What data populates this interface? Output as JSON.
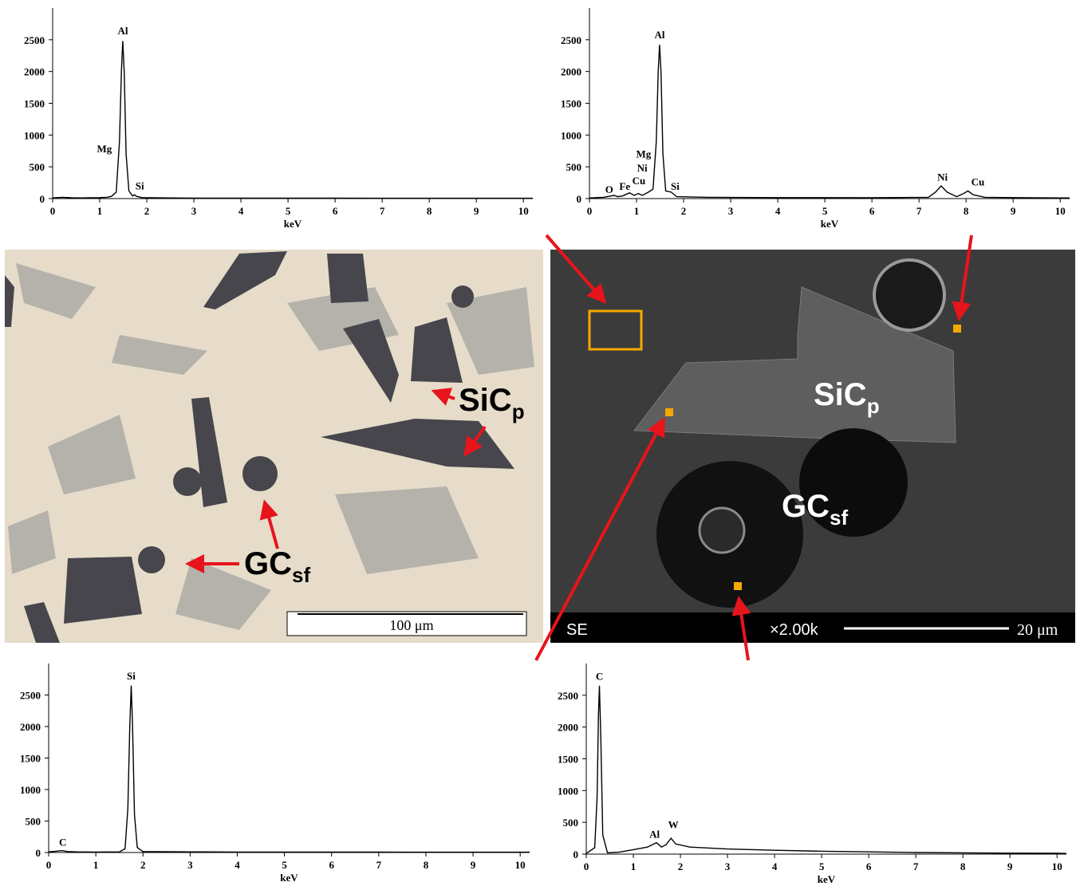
{
  "chart_data": [
    {
      "type": "line",
      "x_label": "keV",
      "xlim": [
        0,
        10.2
      ],
      "xticks": [
        0,
        1,
        2,
        3,
        4,
        5,
        6,
        7,
        8,
        9,
        10
      ],
      "ylim": [
        0,
        3000
      ],
      "yticks": [
        0,
        500,
        1000,
        1500,
        2000,
        2500
      ],
      "x": [
        0,
        0.2,
        0.4,
        0.6,
        0.8,
        1.0,
        1.15,
        1.25,
        1.35,
        1.42,
        1.46,
        1.49,
        1.52,
        1.56,
        1.62,
        1.7,
        1.74,
        1.78,
        1.9,
        2.5,
        3,
        4,
        5,
        6,
        7,
        8,
        9,
        10,
        10.2
      ],
      "series": [
        {
          "color": "#000000",
          "values": [
            10,
            20,
            12,
            10,
            12,
            15,
            20,
            35,
            100,
            900,
            2000,
            2480,
            2000,
            700,
            120,
            40,
            60,
            35,
            15,
            10,
            8,
            8,
            6,
            6,
            5,
            5,
            5,
            5,
            5
          ]
        }
      ],
      "annotations": [
        {
          "text": "Al",
          "x": 1.49,
          "y": 2560
        },
        {
          "text": "Mg",
          "x": 1.1,
          "y": 700
        },
        {
          "text": "Si",
          "x": 1.85,
          "y": 120
        }
      ]
    },
    {
      "type": "line",
      "x_label": "keV",
      "xlim": [
        0,
        10.2
      ],
      "xticks": [
        0,
        1,
        2,
        3,
        4,
        5,
        6,
        7,
        8,
        9,
        10
      ],
      "ylim": [
        0,
        3000
      ],
      "yticks": [
        0,
        500,
        1000,
        1500,
        2000,
        2500
      ],
      "x": [
        0,
        0.3,
        0.52,
        0.6,
        0.7,
        0.85,
        0.95,
        1.04,
        1.12,
        1.25,
        1.35,
        1.42,
        1.46,
        1.49,
        1.52,
        1.56,
        1.62,
        1.74,
        1.85,
        2.5,
        4,
        6,
        7.2,
        7.35,
        7.47,
        7.6,
        7.8,
        7.95,
        8.04,
        8.15,
        8.4,
        9,
        10,
        10.2
      ],
      "series": [
        {
          "color": "#000000",
          "values": [
            10,
            20,
            50,
            30,
            40,
            90,
            50,
            80,
            50,
            100,
            150,
            900,
            2000,
            2420,
            2000,
            700,
            120,
            100,
            30,
            20,
            15,
            12,
            20,
            100,
            200,
            100,
            30,
            80,
            120,
            60,
            20,
            15,
            10,
            10
          ]
        }
      ],
      "annotations": [
        {
          "text": "O",
          "x": 0.42,
          "y": 60
        },
        {
          "text": "Fe",
          "x": 0.75,
          "y": 110
        },
        {
          "text": "Cu",
          "x": 1.05,
          "y": 200
        },
        {
          "text": "Ni",
          "x": 1.12,
          "y": 400
        },
        {
          "text": "Mg",
          "x": 1.15,
          "y": 620
        },
        {
          "text": "Al",
          "x": 1.49,
          "y": 2500
        },
        {
          "text": "Si",
          "x": 1.82,
          "y": 110
        },
        {
          "text": "Ni",
          "x": 7.5,
          "y": 260
        },
        {
          "text": "Cu",
          "x": 8.25,
          "y": 180
        }
      ]
    },
    {
      "type": "line",
      "x_label": "keV",
      "xlim": [
        0,
        10.2
      ],
      "xticks": [
        0,
        1,
        2,
        3,
        4,
        5,
        6,
        7,
        8,
        9,
        10
      ],
      "ylim": [
        0,
        3000
      ],
      "yticks": [
        0,
        500,
        1000,
        1500,
        2000,
        2500
      ],
      "x": [
        0,
        0.15,
        0.28,
        0.4,
        0.6,
        1,
        1.5,
        1.62,
        1.68,
        1.72,
        1.75,
        1.78,
        1.82,
        1.88,
        2,
        3,
        4,
        5,
        6,
        7,
        8,
        9,
        10,
        10.2
      ],
      "series": [
        {
          "color": "#000000",
          "values": [
            10,
            20,
            30,
            15,
            10,
            8,
            10,
            60,
            700,
            2000,
            2650,
            2000,
            600,
            80,
            15,
            10,
            8,
            8,
            6,
            6,
            5,
            5,
            5,
            5
          ]
        }
      ],
      "annotations": [
        {
          "text": "C",
          "x": 0.3,
          "y": 80
        },
        {
          "text": "Si",
          "x": 1.75,
          "y": 2720
        }
      ]
    },
    {
      "type": "line",
      "x_label": "keV",
      "xlim": [
        0,
        10.2
      ],
      "xticks": [
        0,
        1,
        2,
        3,
        4,
        5,
        6,
        7,
        8,
        9,
        10
      ],
      "ylim": [
        0,
        3000
      ],
      "yticks": [
        0,
        500,
        1000,
        1500,
        2000,
        2500
      ],
      "x": [
        0,
        0.18,
        0.23,
        0.26,
        0.28,
        0.31,
        0.35,
        0.45,
        0.7,
        1,
        1.3,
        1.49,
        1.6,
        1.7,
        1.8,
        1.9,
        2.2,
        3,
        4,
        5,
        6,
        7,
        8,
        9,
        10,
        10.2
      ],
      "series": [
        {
          "color": "#000000",
          "values": [
            10,
            100,
            900,
            2200,
            2650,
            1800,
            300,
            20,
            30,
            70,
            110,
            180,
            110,
            150,
            250,
            160,
            110,
            80,
            60,
            45,
            35,
            25,
            20,
            15,
            12,
            10
          ]
        }
      ],
      "annotations": [
        {
          "text": "C",
          "x": 0.28,
          "y": 2720
        },
        {
          "text": "Al",
          "x": 1.45,
          "y": 230
        },
        {
          "text": "W",
          "x": 1.85,
          "y": 380
        }
      ]
    }
  ],
  "optical_image": {
    "labels": [
      {
        "main": "SiC",
        "sub": "p"
      },
      {
        "main": "GC",
        "sub": "sf"
      }
    ],
    "scale_bar": "100 μm"
  },
  "sem_image": {
    "labels": [
      {
        "main": "SiC",
        "sub": "p"
      },
      {
        "main": "GC",
        "sub": "sf"
      }
    ],
    "detector": "SE",
    "magnification": "×2.00k",
    "scale_bar": "20 μm"
  }
}
